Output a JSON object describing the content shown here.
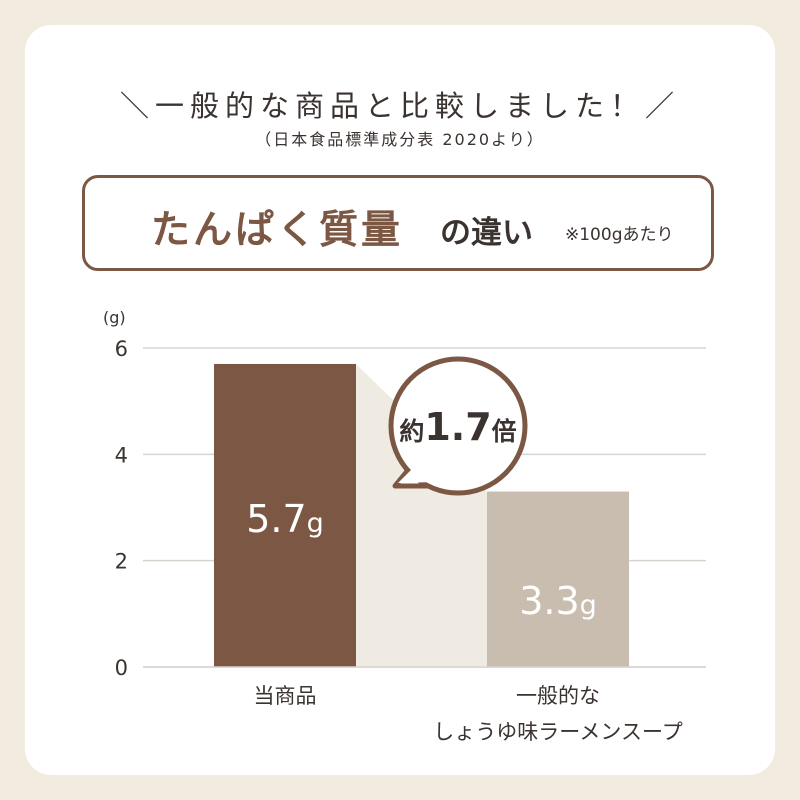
{
  "header": {
    "headline": "＼一般的な商品と比較しました！／",
    "source": "（日本食品標準成分表 2020より）"
  },
  "title": {
    "main": "たんぱく質量",
    "sub": "の違い",
    "note": "※100gあたり"
  },
  "badge": {
    "prefix": "約",
    "number": "1.7",
    "suffix": "倍"
  },
  "colors": {
    "bar_product": "#7b5744",
    "bar_general": "#c8bdaf",
    "connector": "#f0ebe2",
    "accent": "#7b5744",
    "background": "#f2ebdf"
  },
  "chart_data": {
    "type": "bar",
    "categories": [
      [
        "当商品"
      ],
      [
        "一般的な",
        "しょうゆ味ラーメンスープ"
      ]
    ],
    "values": [
      5.7,
      3.3
    ],
    "value_labels": [
      "5.7",
      "3.3"
    ],
    "value_unit": "g",
    "ylabel": "(g)",
    "yticks": [
      0,
      2,
      4,
      6
    ],
    "ylim": [
      0,
      6
    ],
    "grid": true
  }
}
